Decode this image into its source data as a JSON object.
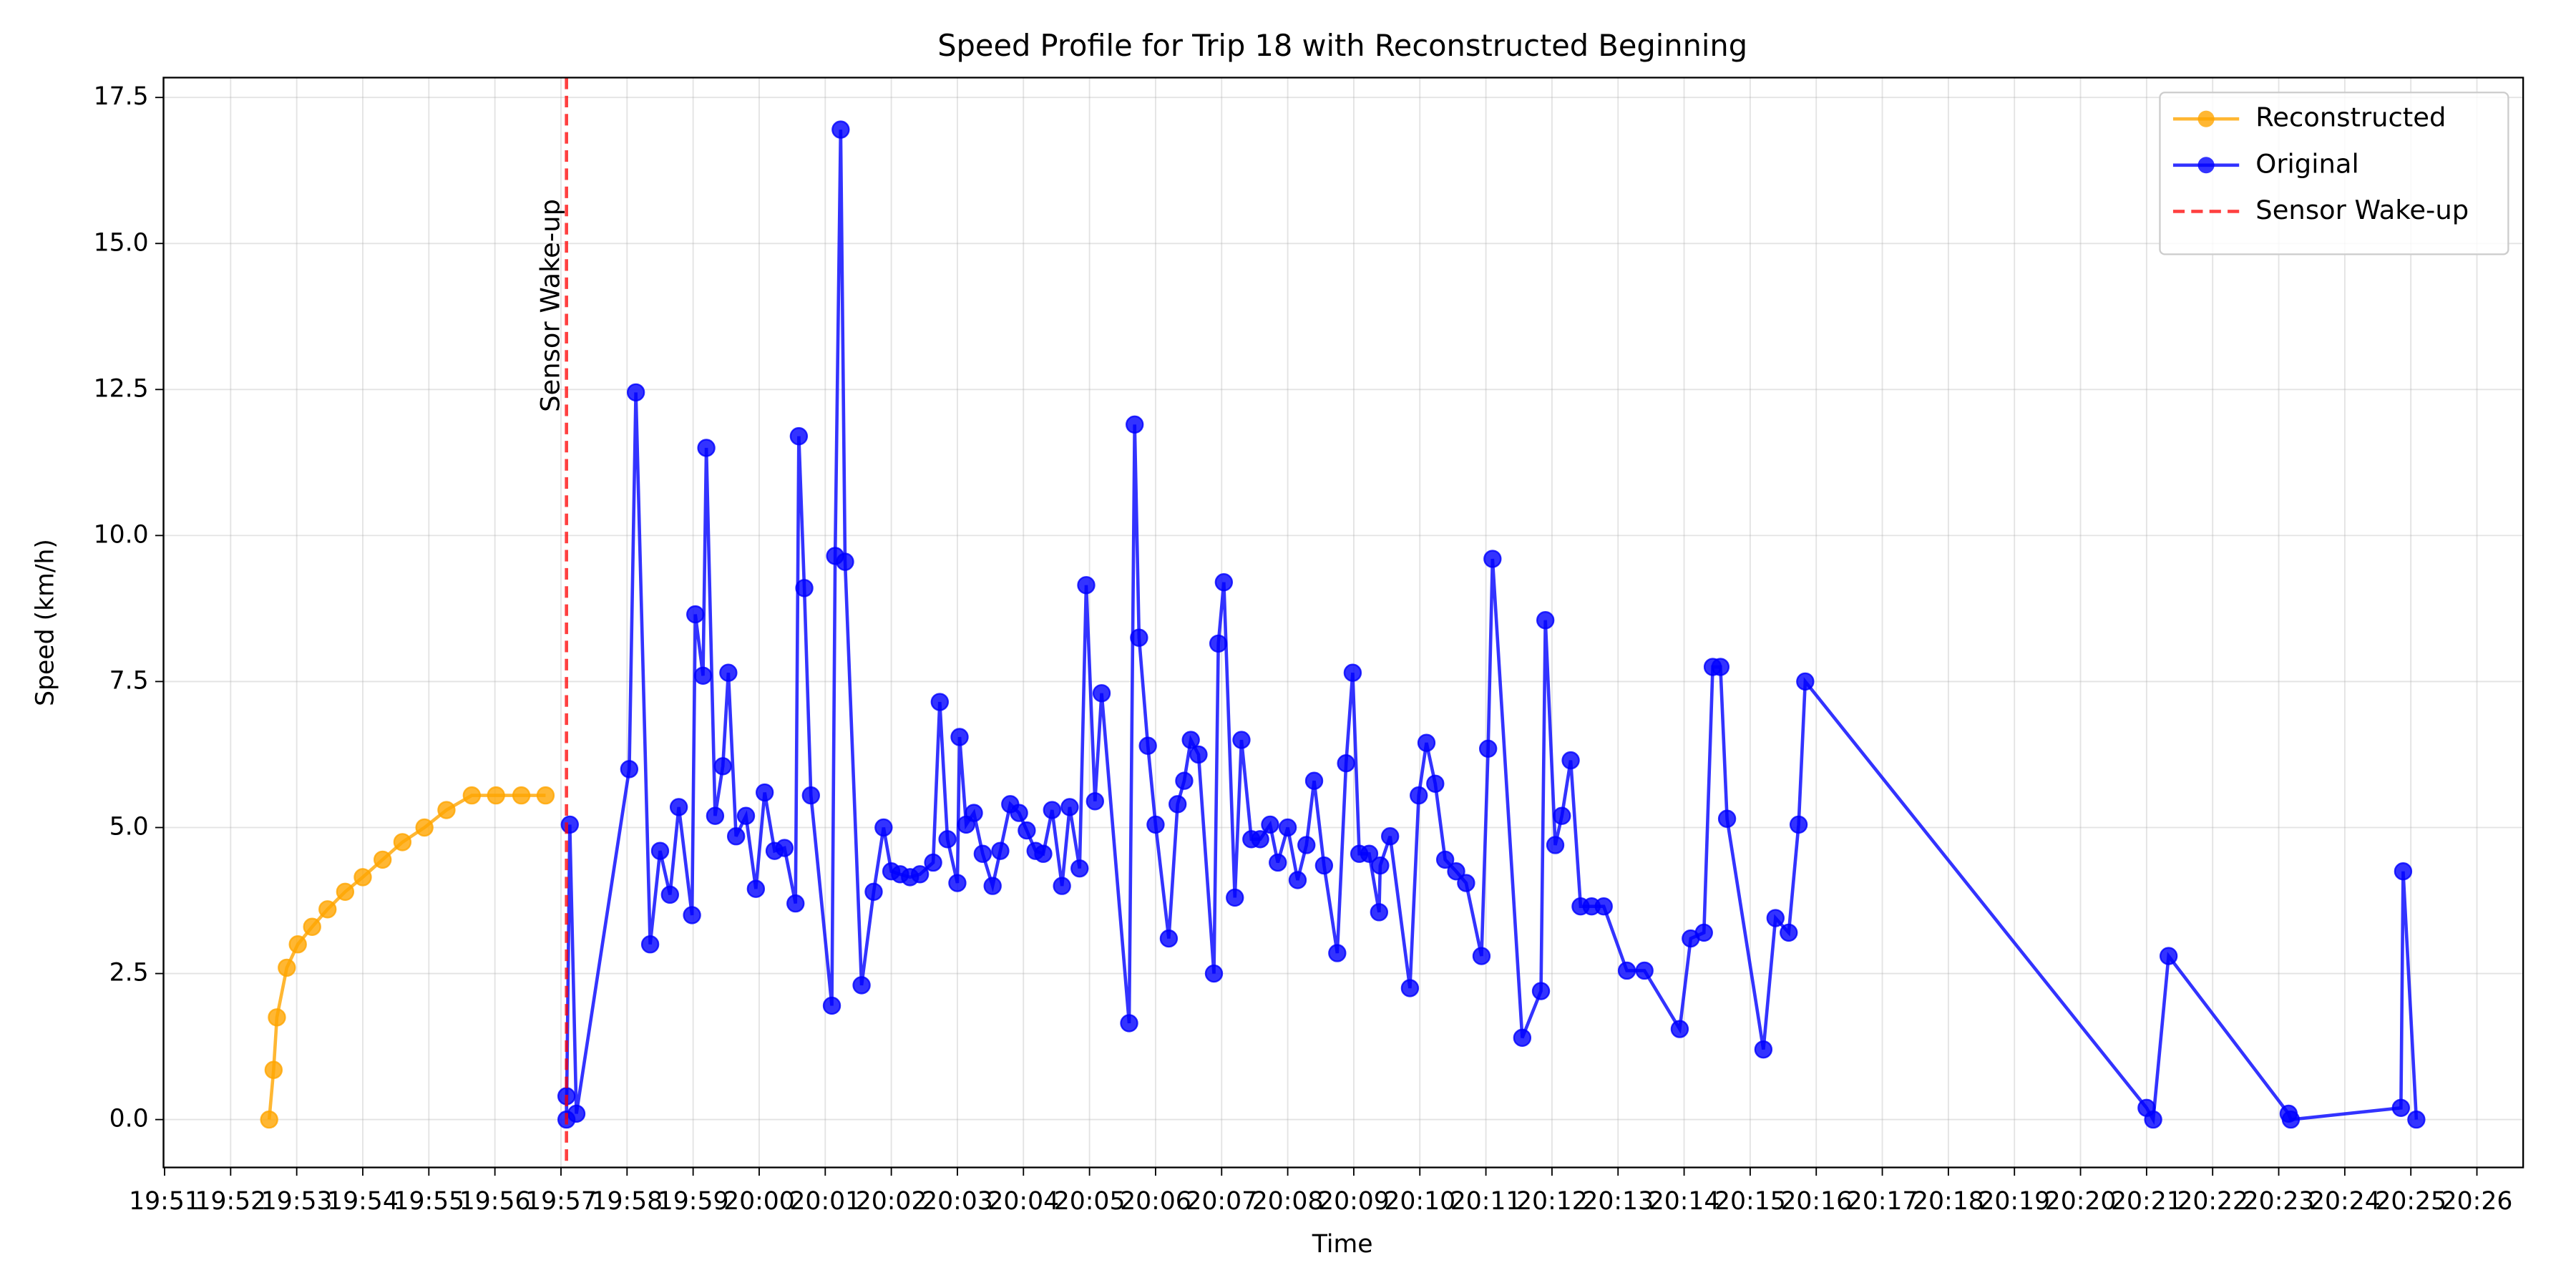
{
  "chart_data": {
    "type": "line",
    "title": "Speed Profile for Trip 18 with Reconstructed Beginning",
    "x_label": "Time",
    "y_label": "Speed (km/h)",
    "xlim": [
      "19:50:59",
      "20:26:42"
    ],
    "xticks": [
      "19:51",
      "19:52",
      "19:53",
      "19:54",
      "19:55",
      "19:56",
      "19:57",
      "19:58",
      "19:59",
      "20:00",
      "20:01",
      "20:02",
      "20:03",
      "20:04",
      "20:05",
      "20:06",
      "20:07",
      "20:08",
      "20:09",
      "20:10",
      "20:11",
      "20:12",
      "20:13",
      "20:14",
      "20:15",
      "20:16",
      "20:17",
      "20:18",
      "20:19",
      "20:20",
      "20:21",
      "20:22",
      "20:23",
      "20:24",
      "20:25",
      "20:26"
    ],
    "ylim": [
      -0.82,
      17.84
    ],
    "yticks": [
      {
        "value": 0,
        "label": "0.0"
      },
      2.5,
      {
        "value": 5,
        "label": "5.0"
      },
      7.5,
      {
        "value": 10,
        "label": "10.0"
      },
      12.5,
      {
        "value": 15,
        "label": "15.0"
      },
      17.5
    ],
    "grid": true,
    "legend": "upper right",
    "series": [
      {
        "name": "Reconstructed",
        "color": "#ffa500",
        "x": [
          "19:52:35",
          "19:52:39",
          "19:52:42",
          "19:52:51",
          "19:53:01",
          "19:53:14",
          "19:53:28",
          "19:53:44",
          "19:54:00",
          "19:54:18",
          "19:54:36",
          "19:54:56",
          "19:55:16",
          "19:55:39",
          "19:56:01",
          "19:56:24",
          "19:56:46"
        ],
        "values": [
          0,
          0.85,
          1.75,
          2.6,
          3.0,
          3.3,
          3.6,
          3.9,
          4.15,
          4.45,
          4.75,
          5.0,
          5.3,
          5.55,
          5.55,
          5.55,
          5.55
        ]
      },
      {
        "name": "Original",
        "color": "#0000ff",
        "x": [
          "19:57:05",
          "19:57:05",
          "19:57:08",
          "19:57:14",
          "19:58:02",
          "19:58:08",
          "19:58:21",
          "19:58:30",
          "19:58:39",
          "19:58:47",
          "19:58:59",
          "19:59:02",
          "19:59:09",
          "19:59:12",
          "19:59:20",
          "19:59:27",
          "19:59:32",
          "19:59:39",
          "19:59:48",
          "19:59:57",
          "20:00:05",
          "20:00:14",
          "20:00:23",
          "20:00:33",
          "20:00:36",
          "20:00:41",
          "20:00:47",
          "20:01:06",
          "20:01:09",
          "20:01:14",
          "20:01:18",
          "20:01:33",
          "20:01:44",
          "20:01:53",
          "20:02:00",
          "20:02:08",
          "20:02:17",
          "20:02:26",
          "20:02:38",
          "20:02:44",
          "20:02:51",
          "20:03:00",
          "20:03:02",
          "20:03:08",
          "20:03:15",
          "20:03:23",
          "20:03:32",
          "20:03:39",
          "20:03:48",
          "20:03:56",
          "20:04:03",
          "20:04:11",
          "20:04:18",
          "20:04:26",
          "20:04:35",
          "20:04:42",
          "20:04:51",
          "20:04:57",
          "20:05:05",
          "20:05:11",
          "20:05:36",
          "20:05:41",
          "20:05:45",
          "20:05:53",
          "20:06:00",
          "20:06:12",
          "20:06:20",
          "20:06:26",
          "20:06:32",
          "20:06:39",
          "20:06:53",
          "20:06:57",
          "20:07:02",
          "20:07:12",
          "20:07:18",
          "20:07:27",
          "20:07:35",
          "20:07:44",
          "20:07:51",
          "20:08:00",
          "20:08:09",
          "20:08:17",
          "20:08:24",
          "20:08:33",
          "20:08:45",
          "20:08:53",
          "20:08:59",
          "20:09:05",
          "20:09:14",
          "20:09:23",
          "20:09:24",
          "20:09:33",
          "20:09:51",
          "20:09:59",
          "20:10:06",
          "20:10:14",
          "20:10:23",
          "20:10:33",
          "20:10:42",
          "20:10:56",
          "20:11:02",
          "20:11:06",
          "20:11:33",
          "20:11:50",
          "20:11:54",
          "20:12:03",
          "20:12:09",
          "20:12:17",
          "20:12:26",
          "20:12:36",
          "20:12:47",
          "20:13:08",
          "20:13:24",
          "20:13:56",
          "20:14:06",
          "20:14:18",
          "20:14:26",
          "20:14:33",
          "20:14:39",
          "20:15:12",
          "20:15:23",
          "20:15:35",
          "20:15:44",
          "20:15:50",
          "20:21:00",
          "20:21:06",
          "20:21:20",
          "20:23:09",
          "20:23:11",
          "20:24:51",
          "20:24:53",
          "20:25:05"
        ],
        "values": [
          0.4,
          0.0,
          5.05,
          0.1,
          6.0,
          12.45,
          3.0,
          4.6,
          3.85,
          5.35,
          3.5,
          8.65,
          7.6,
          11.5,
          5.2,
          6.05,
          7.65,
          4.85,
          5.2,
          3.95,
          5.6,
          4.6,
          4.65,
          3.7,
          11.7,
          9.1,
          5.55,
          1.95,
          9.65,
          16.95,
          9.55,
          2.3,
          3.9,
          5.0,
          4.25,
          4.2,
          4.15,
          4.2,
          4.4,
          7.15,
          4.8,
          4.05,
          6.55,
          5.05,
          5.25,
          4.55,
          4.0,
          4.6,
          5.4,
          5.25,
          4.95,
          4.6,
          4.55,
          5.3,
          4.0,
          5.35,
          4.3,
          9.15,
          5.45,
          7.3,
          1.65,
          11.9,
          8.25,
          6.4,
          5.05,
          3.1,
          5.4,
          5.8,
          6.5,
          6.25,
          2.5,
          8.15,
          9.2,
          3.8,
          6.5,
          4.8,
          4.8,
          5.05,
          4.4,
          5.0,
          4.1,
          4.7,
          5.8,
          4.35,
          2.85,
          6.1,
          7.65,
          4.55,
          4.55,
          3.55,
          4.35,
          4.85,
          2.25,
          5.55,
          6.45,
          5.75,
          4.45,
          4.25,
          4.05,
          2.8,
          6.35,
          9.6,
          1.4,
          2.2,
          8.55,
          4.7,
          5.2,
          6.15,
          3.65,
          3.65,
          3.65,
          2.55,
          2.55,
          1.55,
          3.1,
          3.2,
          7.75,
          7.75,
          5.15,
          1.2,
          3.45,
          3.2,
          5.05,
          7.5,
          0.2,
          0.0,
          2.8,
          0.1,
          0.0,
          0.2,
          4.25,
          0.0
        ]
      }
    ],
    "vline": {
      "name": "Sensor Wake-up",
      "x": "19:57:05",
      "color": "#ff0000"
    },
    "annotation": "Sensor Wake-up"
  }
}
